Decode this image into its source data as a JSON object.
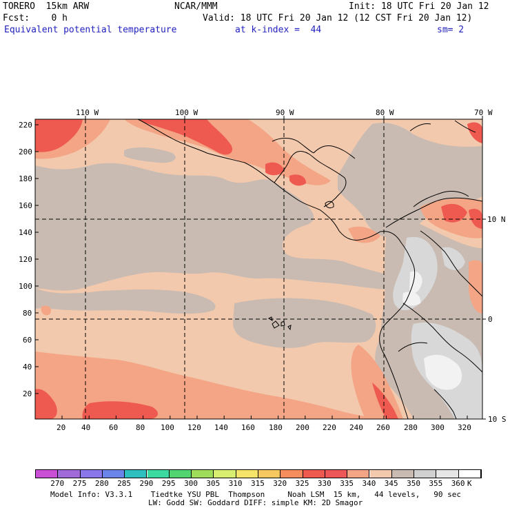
{
  "header": {
    "model": "TORERO  15km ARW",
    "org": "NCAR/MMM",
    "init": "Init: 18 UTC Fri 20 Jan 12",
    "fcst": "Fcst:    0 h",
    "valid": "Valid: 18 UTC Fri 20 Jan 12 (12 CST Fri 20 Jan 12)",
    "field": "Equivalent potential temperature",
    "level": "at k-index =  44",
    "smoothing": "sm= 2"
  },
  "map": {
    "lon_labels": [
      "110 W",
      "100 W",
      "90 W",
      "80 W",
      "70 W"
    ],
    "lat_labels": [
      "10 N",
      "0",
      "10 S"
    ],
    "y_ticks": [
      "220",
      "200",
      "180",
      "160",
      "140",
      "120",
      "100",
      "80",
      "60",
      "40",
      "20"
    ],
    "x_ticks": [
      "20",
      "40",
      "60",
      "80",
      "100",
      "120",
      "140",
      "160",
      "180",
      "200",
      "220",
      "240",
      "260",
      "280",
      "300",
      "320"
    ],
    "colors": {
      "base_tan": "#f3c9ad",
      "gray": "#c9bbb2",
      "salmon": "#f3a585",
      "red": "#ef5a50",
      "light_gray": "#d8d8d8",
      "very_light": "#f2f2f2"
    }
  },
  "colorbar": {
    "labels": [
      "270",
      "275",
      "280",
      "285",
      "290",
      "295",
      "300",
      "305",
      "310",
      "315",
      "320",
      "325",
      "330",
      "335",
      "340",
      "345",
      "350",
      "355",
      "360",
      "K"
    ],
    "colors": [
      "#c84fd6",
      "#a06ad8",
      "#8a78ea",
      "#6b84ea",
      "#2fbfbe",
      "#3cd9a0",
      "#52d470",
      "#9edc5a",
      "#d8ee70",
      "#f5e36a",
      "#f7c85f",
      "#f58d5e",
      "#ef5a50",
      "#ee5757",
      "#f3a585",
      "#f3c9ad",
      "#c9bbb2",
      "#d0d0d0",
      "#e6e6e6",
      "#ffffff"
    ]
  },
  "footer": {
    "line1": "Model Info: V3.3.1    Tiedtke YSU PBL  Thompson     Noah LSM  15 km,   44 levels,   90 sec",
    "line2": "LW: Godd SW: Goddard DIFF: simple KM: 2D Smagor"
  }
}
